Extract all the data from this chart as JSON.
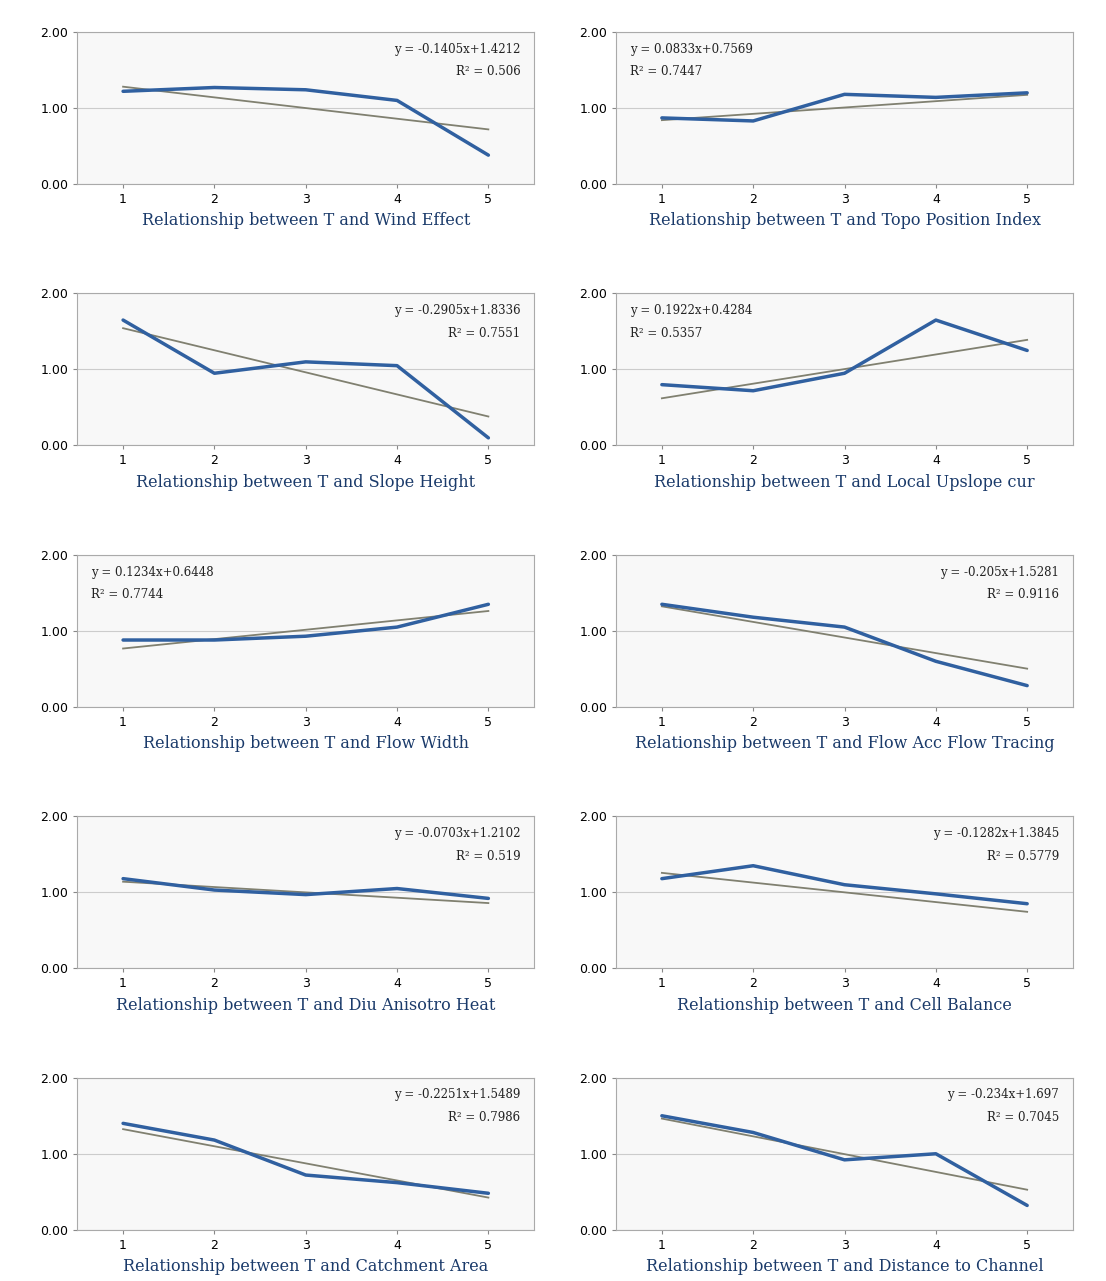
{
  "plots": [
    {
      "title": "Relationship between T and Wind Effect",
      "eq": "y = -0.1405x+1.4212",
      "r2": "R² = 0.506",
      "slope": -0.1405,
      "intercept": 1.4212,
      "data_y": [
        1.22,
        1.27,
        1.24,
        1.1,
        0.38
      ],
      "eq_pos": "upper right"
    },
    {
      "title": "Relationship between T and Topo Position Index",
      "eq": "y = 0.0833x+0.7569",
      "r2": "R² = 0.7447",
      "slope": 0.0833,
      "intercept": 0.7569,
      "data_y": [
        0.87,
        0.83,
        1.18,
        1.14,
        1.2
      ],
      "eq_pos": "upper left"
    },
    {
      "title": "Relationship between T and Slope Height",
      "eq": "y = -0.2905x+1.8336",
      "r2": "R² = 0.7551",
      "slope": -0.2905,
      "intercept": 1.8336,
      "data_y": [
        1.65,
        0.95,
        1.1,
        1.05,
        0.1
      ],
      "eq_pos": "upper right"
    },
    {
      "title": "Relationship between T and Local Upslope cur",
      "eq": "y = 0.1922x+0.4284",
      "r2": "R² = 0.5357",
      "slope": 0.1922,
      "intercept": 0.4284,
      "data_y": [
        0.8,
        0.72,
        0.95,
        1.65,
        1.25
      ],
      "eq_pos": "upper left"
    },
    {
      "title": "Relationship between T and Flow Width",
      "eq": "y = 0.1234x+0.6448",
      "r2": "R² = 0.7744",
      "slope": 0.1234,
      "intercept": 0.6448,
      "data_y": [
        0.88,
        0.88,
        0.93,
        1.05,
        1.35
      ],
      "eq_pos": "upper left"
    },
    {
      "title": "Relationship between T and Flow Acc Flow Tracing",
      "eq": "y = -0.205x+1.5281",
      "r2": "R² = 0.9116",
      "slope": -0.205,
      "intercept": 1.5281,
      "data_y": [
        1.35,
        1.18,
        1.05,
        0.6,
        0.28
      ],
      "eq_pos": "upper right"
    },
    {
      "title": "Relationship between T and Diu Anisotro Heat",
      "eq": "y = -0.0703x+1.2102",
      "r2": "R² = 0.519",
      "slope": -0.0703,
      "intercept": 1.2102,
      "data_y": [
        1.18,
        1.03,
        0.97,
        1.05,
        0.92
      ],
      "eq_pos": "upper right"
    },
    {
      "title": "Relationship between T and Cell Balance",
      "eq": "y = -0.1282x+1.3845",
      "r2": "R² = 0.5779",
      "slope": -0.1282,
      "intercept": 1.3845,
      "data_y": [
        1.18,
        1.35,
        1.1,
        0.98,
        0.85
      ],
      "eq_pos": "upper right"
    },
    {
      "title": "Relationship between T and Catchment Area",
      "eq": "y = -0.2251x+1.5489",
      "r2": "R² = 0.7986",
      "slope": -0.2251,
      "intercept": 1.5489,
      "data_y": [
        1.4,
        1.18,
        0.72,
        0.62,
        0.48
      ],
      "eq_pos": "upper right"
    },
    {
      "title": "Relationship between T and Distance to Channel",
      "eq": "y = -0.234x+1.697",
      "r2": "R² = 0.7045",
      "slope": -0.234,
      "intercept": 1.697,
      "data_y": [
        1.5,
        1.28,
        0.92,
        1.0,
        0.32
      ],
      "eq_pos": "upper right"
    }
  ],
  "x_data": [
    1,
    2,
    3,
    4,
    5
  ],
  "ylim": [
    0.0,
    2.0
  ],
  "yticks": [
    0.0,
    1.0,
    2.0
  ],
  "xticks": [
    1,
    2,
    3,
    4,
    5
  ],
  "data_line_color": "#3060A0",
  "trend_line_color": "#808070",
  "background_color": "#ffffff",
  "caption_color": "#1a3a6a",
  "caption_fontsize": 11.5,
  "axis_fontsize": 9,
  "eq_fontsize": 8.5,
  "spine_color": "#aaaaaa",
  "grid_color": "#cccccc"
}
